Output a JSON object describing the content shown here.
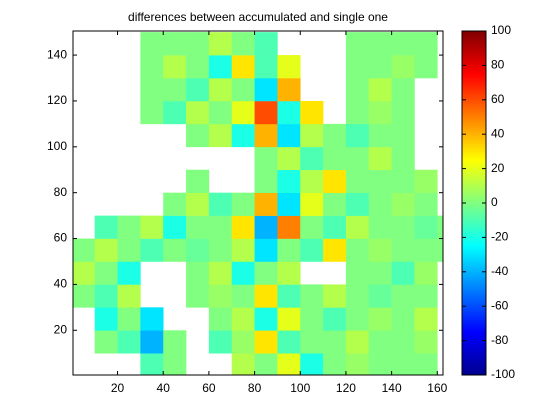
{
  "chart_data": {
    "type": "heatmap",
    "title": "differences between accumulated and single one",
    "colormap": "jet",
    "x": [
      5,
      15,
      25,
      35,
      45,
      55,
      65,
      75,
      85,
      95,
      105,
      115,
      125,
      135,
      145,
      155,
      165
    ],
    "y": [
      5,
      15,
      25,
      35,
      45,
      55,
      65,
      75,
      85,
      95,
      105,
      115,
      125,
      135,
      145
    ],
    "values": [
      [
        null,
        null,
        null,
        -10,
        0,
        null,
        null,
        10,
        0,
        20,
        -20,
        0,
        5,
        0,
        0,
        0,
        null
      ],
      [
        null,
        0,
        -10,
        -40,
        0,
        null,
        -10,
        5,
        30,
        -10,
        0,
        0,
        10,
        0,
        0,
        5,
        null
      ],
      [
        null,
        -20,
        0,
        -30,
        null,
        null,
        0,
        10,
        -20,
        20,
        0,
        -10,
        0,
        5,
        0,
        10,
        null
      ],
      [
        0,
        -10,
        10,
        null,
        null,
        0,
        5,
        0,
        30,
        -10,
        0,
        10,
        0,
        -5,
        0,
        0,
        null
      ],
      [
        10,
        0,
        -20,
        null,
        null,
        0,
        10,
        -20,
        0,
        10,
        null,
        null,
        0,
        0,
        -10,
        5,
        null
      ],
      [
        0,
        10,
        0,
        -10,
        0,
        -5,
        0,
        10,
        -30,
        0,
        -10,
        30,
        0,
        5,
        0,
        0,
        0
      ],
      [
        null,
        -10,
        0,
        10,
        -20,
        0,
        0,
        30,
        -40,
        50,
        0,
        -10,
        10,
        0,
        0,
        -5,
        0
      ],
      [
        null,
        null,
        null,
        null,
        0,
        10,
        -10,
        0,
        40,
        -30,
        20,
        0,
        -10,
        0,
        5,
        0,
        null
      ],
      [
        null,
        null,
        null,
        null,
        null,
        0,
        null,
        null,
        0,
        -20,
        10,
        30,
        0,
        0,
        0,
        5,
        null
      ],
      [
        null,
        null,
        null,
        null,
        null,
        null,
        null,
        null,
        0,
        10,
        -10,
        0,
        0,
        10,
        0,
        null,
        null
      ],
      [
        null,
        null,
        null,
        null,
        null,
        0,
        10,
        -20,
        40,
        -30,
        10,
        0,
        -10,
        0,
        0,
        null,
        null
      ],
      [
        null,
        null,
        null,
        0,
        -10,
        10,
        0,
        20,
        60,
        -20,
        30,
        null,
        0,
        5,
        0,
        null,
        null
      ],
      [
        null,
        null,
        null,
        0,
        0,
        -10,
        10,
        0,
        -30,
        40,
        null,
        null,
        0,
        10,
        0,
        null,
        null
      ],
      [
        null,
        null,
        null,
        0,
        10,
        0,
        -20,
        30,
        -10,
        20,
        null,
        null,
        0,
        0,
        5,
        0,
        null
      ],
      [
        null,
        null,
        null,
        0,
        0,
        0,
        10,
        0,
        -10,
        null,
        null,
        null,
        0,
        0,
        0,
        0,
        null
      ]
    ],
    "xlim": [
      0.5,
      162.5
    ],
    "ylim": [
      0.5,
      150.5
    ],
    "xticks": [
      20,
      40,
      60,
      80,
      100,
      120,
      140,
      160
    ],
    "yticks": [
      20,
      40,
      60,
      80,
      100,
      120,
      140
    ],
    "zlim": [
      -100,
      100
    ],
    "colorbar_ticks": [
      -100,
      -80,
      -60,
      -40,
      -20,
      0,
      20,
      40,
      60,
      80,
      100
    ]
  }
}
